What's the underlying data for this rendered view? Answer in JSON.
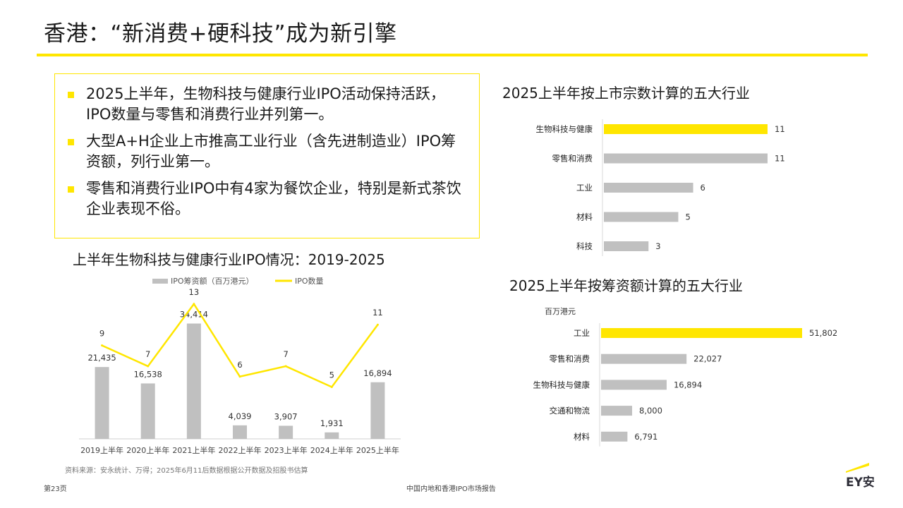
{
  "page": {
    "title": "香港：“新消费+硬科技”成为新引擎",
    "source": "资料来源：安永统计、万得；2025年6月11后数据根据公开数据及招股书估算",
    "page_number": "第23页",
    "report_name": "中国内地和香港IPO市场报告",
    "logo_text": "EY安永",
    "accent_color": "#ffe600",
    "gray_color": "#c0c0c0"
  },
  "bullets": [
    "2025上半年，生物科技与健康行业IPO活动保持活跃，IPO数量与零售和消费行业并列第一。",
    "大型A+H企业上市推高工业行业（含先进制造业）IPO筹资额，列行业第一。",
    "零售和消费行业IPO中有4家为餐饮企业，特别是新式茶饮企业表现不俗。"
  ],
  "chart_data": [
    {
      "type": "bar+line",
      "title": "上半年生物科技与健康行业IPO情况：2019-2025",
      "categories": [
        "2019上半年",
        "2020上半年",
        "2021上半年",
        "2022上半年",
        "2023上半年",
        "2024上半年",
        "2025上半年"
      ],
      "series": [
        {
          "name": "IPO筹资额（百万港元）",
          "type": "bar",
          "values": [
            21435,
            16538,
            34414,
            4039,
            3907,
            1931,
            16894
          ],
          "labels": [
            "21,435",
            "16,538",
            "34,414",
            "4,039",
            "3,907",
            "1,931",
            "16,894"
          ]
        },
        {
          "name": "IPO数量",
          "type": "line",
          "values": [
            9,
            7,
            13,
            6,
            7,
            5,
            11
          ],
          "labels": [
            "9",
            "7",
            "13",
            "6",
            "7",
            "5",
            "11"
          ]
        }
      ],
      "legend": "top"
    },
    {
      "type": "bar",
      "orientation": "horizontal",
      "title": "2025上半年按上市宗数计算的五大行业",
      "categories": [
        "生物科技与健康",
        "零售和消费",
        "工业",
        "材料",
        "科技"
      ],
      "values": [
        11,
        11,
        6,
        5,
        3
      ],
      "labels": [
        "11",
        "11",
        "6",
        "5",
        "3"
      ],
      "highlight_index": 0
    },
    {
      "type": "bar",
      "orientation": "horizontal",
      "title": "2025上半年按筹资额计算的五大行业",
      "unit": "百万港元",
      "categories": [
        "工业",
        "零售和消费",
        "生物科技与健康",
        "交通和物流",
        "材料"
      ],
      "values": [
        51802,
        22027,
        16894,
        8000,
        6791
      ],
      "labels": [
        "51,802",
        "22,027",
        "16,894",
        "8,000",
        "6,791"
      ],
      "highlight_index": 0
    }
  ]
}
